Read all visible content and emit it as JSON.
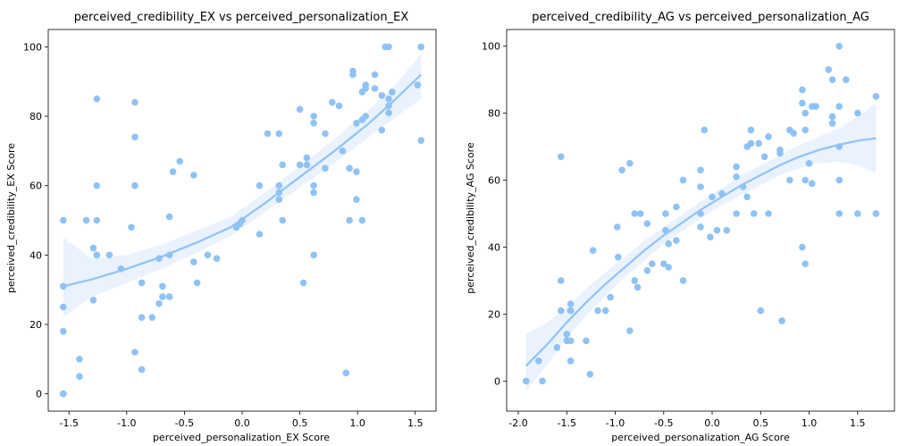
{
  "colors": {
    "points": "#8fc2f5",
    "line": "#8fc2f5",
    "band": "#dbeafc"
  },
  "chart_data": [
    {
      "type": "scatter",
      "title": "perceived_credibility_EX vs perceived_personalization_EX",
      "xlabel": "perceived_personalization_EX Score",
      "ylabel": "perceived_credibility_EX Score",
      "xlim": [
        -1.68,
        1.68
      ],
      "ylim": [
        -5,
        105
      ],
      "xticks": [
        "-1.5",
        "-1.0",
        "-0.5",
        "0.0",
        "0.5",
        "1.0",
        "1.5"
      ],
      "yticks": [
        "0",
        "20",
        "40",
        "60",
        "80",
        "100"
      ],
      "xtick_values": [
        -1.5,
        -1.0,
        -0.5,
        0.0,
        0.5,
        1.0,
        1.5
      ],
      "ytick_values": [
        0,
        20,
        40,
        60,
        80,
        100
      ],
      "points": [
        [
          -1.55,
          50
        ],
        [
          -1.55,
          31
        ],
        [
          -1.55,
          25
        ],
        [
          -1.55,
          18
        ],
        [
          -1.55,
          0
        ],
        [
          -1.55,
          0
        ],
        [
          -1.41,
          10
        ],
        [
          -1.41,
          5
        ],
        [
          -1.35,
          50
        ],
        [
          -1.29,
          42
        ],
        [
          -1.29,
          27
        ],
        [
          -1.26,
          85
        ],
        [
          -1.26,
          60
        ],
        [
          -1.26,
          50
        ],
        [
          -1.26,
          40
        ],
        [
          -1.26,
          40
        ],
        [
          -1.15,
          40
        ],
        [
          -1.05,
          36
        ],
        [
          -0.96,
          48
        ],
        [
          -0.93,
          84
        ],
        [
          -0.93,
          74
        ],
        [
          -0.93,
          60
        ],
        [
          -0.93,
          12
        ],
        [
          -0.87,
          32
        ],
        [
          -0.87,
          22
        ],
        [
          -0.87,
          7
        ],
        [
          -0.78,
          22
        ],
        [
          -0.72,
          26
        ],
        [
          -0.72,
          39
        ],
        [
          -0.69,
          31
        ],
        [
          -0.69,
          28
        ],
        [
          -0.63,
          51
        ],
        [
          -0.63,
          40
        ],
        [
          -0.63,
          28
        ],
        [
          -0.6,
          64
        ],
        [
          -0.54,
          67
        ],
        [
          -0.42,
          63
        ],
        [
          -0.42,
          38
        ],
        [
          -0.39,
          32
        ],
        [
          -0.3,
          40
        ],
        [
          -0.22,
          39
        ],
        [
          -0.05,
          48
        ],
        [
          -0.02,
          49
        ],
        [
          0.0,
          50
        ],
        [
          0.15,
          60
        ],
        [
          0.15,
          46
        ],
        [
          0.22,
          75
        ],
        [
          0.32,
          75
        ],
        [
          0.32,
          60
        ],
        [
          0.32,
          58
        ],
        [
          0.32,
          56
        ],
        [
          0.35,
          66
        ],
        [
          0.35,
          50
        ],
        [
          0.5,
          82
        ],
        [
          0.5,
          66
        ],
        [
          0.53,
          32
        ],
        [
          0.56,
          68
        ],
        [
          0.56,
          66
        ],
        [
          0.62,
          80
        ],
        [
          0.62,
          78
        ],
        [
          0.62,
          60
        ],
        [
          0.62,
          58
        ],
        [
          0.62,
          40
        ],
        [
          0.72,
          65
        ],
        [
          0.72,
          75
        ],
        [
          0.78,
          84
        ],
        [
          0.84,
          83
        ],
        [
          0.87,
          70
        ],
        [
          0.9,
          6
        ],
        [
          0.93,
          65
        ],
        [
          0.93,
          50
        ],
        [
          0.96,
          93
        ],
        [
          0.96,
          92
        ],
        [
          0.99,
          78
        ],
        [
          0.99,
          64
        ],
        [
          0.99,
          56
        ],
        [
          1.04,
          87
        ],
        [
          1.04,
          79
        ],
        [
          1.04,
          50
        ],
        [
          1.07,
          89
        ],
        [
          1.07,
          88
        ],
        [
          1.07,
          80
        ],
        [
          1.15,
          92
        ],
        [
          1.15,
          88
        ],
        [
          1.21,
          86
        ],
        [
          1.21,
          76
        ],
        [
          1.24,
          100
        ],
        [
          1.27,
          100
        ],
        [
          1.27,
          85
        ],
        [
          1.27,
          83
        ],
        [
          1.27,
          81
        ],
        [
          1.3,
          87
        ],
        [
          1.52,
          89
        ],
        [
          1.55,
          100
        ],
        [
          1.55,
          100
        ],
        [
          1.55,
          73
        ]
      ],
      "trend": {
        "x": [
          -1.55,
          -1.3,
          -1.0,
          -0.7,
          -0.4,
          -0.1,
          0.2,
          0.5,
          0.8,
          1.1,
          1.3,
          1.55
        ],
        "y": [
          31,
          33,
          36,
          39.5,
          43.5,
          48,
          55,
          62.5,
          70,
          78,
          84,
          92
        ]
      },
      "band": {
        "x": [
          -1.55,
          -1.3,
          -1.0,
          -0.7,
          -0.4,
          -0.1,
          0.2,
          0.5,
          0.8,
          1.1,
          1.3,
          1.55
        ],
        "lower": [
          22,
          28,
          32,
          36,
          40.5,
          45.5,
          52.5,
          59.5,
          66.5,
          74,
          79,
          85
        ],
        "upper": [
          45,
          39,
          40,
          43,
          47,
          51,
          58,
          65.5,
          73.5,
          82,
          88,
          98
        ]
      }
    },
    {
      "type": "scatter",
      "title": "perceived_credibility_AG vs perceived_personalization_AG",
      "xlabel": "perceived_personalization_AG Score",
      "ylabel": "perceived_credibility_AG Score",
      "xlim": [
        -2.12,
        1.88
      ],
      "ylim": [
        -9,
        105
      ],
      "xticks": [
        "-2.0",
        "-1.5",
        "-1.0",
        "-0.5",
        "0.0",
        "0.5",
        "1.0",
        "1.5"
      ],
      "yticks": [
        "0",
        "20",
        "40",
        "60",
        "80",
        "100"
      ],
      "xtick_values": [
        -2.0,
        -1.5,
        -1.0,
        -0.5,
        0.0,
        0.5,
        1.0,
        1.5
      ],
      "ytick_values": [
        0,
        20,
        40,
        60,
        80,
        100
      ],
      "points": [
        [
          -1.92,
          0
        ],
        [
          -1.79,
          6
        ],
        [
          -1.75,
          0
        ],
        [
          -1.6,
          10
        ],
        [
          -1.56,
          67
        ],
        [
          -1.56,
          30
        ],
        [
          -1.56,
          21
        ],
        [
          -1.5,
          14
        ],
        [
          -1.5,
          12
        ],
        [
          -1.46,
          23
        ],
        [
          -1.46,
          21
        ],
        [
          -1.46,
          12
        ],
        [
          -1.46,
          6
        ],
        [
          -1.3,
          12
        ],
        [
          -1.26,
          2
        ],
        [
          -1.23,
          39
        ],
        [
          -1.18,
          21
        ],
        [
          -1.1,
          21
        ],
        [
          -1.05,
          25
        ],
        [
          -0.98,
          46
        ],
        [
          -0.97,
          37
        ],
        [
          -0.93,
          63
        ],
        [
          -0.85,
          65
        ],
        [
          -0.85,
          15
        ],
        [
          -0.8,
          30
        ],
        [
          -0.8,
          50
        ],
        [
          -0.77,
          28
        ],
        [
          -0.74,
          50
        ],
        [
          -0.67,
          47
        ],
        [
          -0.67,
          33
        ],
        [
          -0.62,
          35
        ],
        [
          -0.5,
          35
        ],
        [
          -0.48,
          45
        ],
        [
          -0.48,
          50
        ],
        [
          -0.45,
          41
        ],
        [
          -0.45,
          34
        ],
        [
          -0.37,
          42
        ],
        [
          -0.37,
          52
        ],
        [
          -0.3,
          30
        ],
        [
          -0.3,
          60
        ],
        [
          -0.12,
          63
        ],
        [
          -0.12,
          58
        ],
        [
          -0.12,
          50
        ],
        [
          -0.12,
          46
        ],
        [
          -0.08,
          75
        ],
        [
          -0.02,
          43
        ],
        [
          0.0,
          55
        ],
        [
          0.05,
          45
        ],
        [
          0.1,
          56
        ],
        [
          0.15,
          45
        ],
        [
          0.25,
          64
        ],
        [
          0.25,
          61
        ],
        [
          0.25,
          50
        ],
        [
          0.32,
          58
        ],
        [
          0.36,
          70
        ],
        [
          0.36,
          55
        ],
        [
          0.4,
          75
        ],
        [
          0.4,
          71
        ],
        [
          0.43,
          50
        ],
        [
          0.48,
          71
        ],
        [
          0.5,
          21
        ],
        [
          0.54,
          67
        ],
        [
          0.58,
          73
        ],
        [
          0.58,
          50
        ],
        [
          0.7,
          69
        ],
        [
          0.7,
          68
        ],
        [
          0.72,
          18
        ],
        [
          0.8,
          75
        ],
        [
          0.8,
          60
        ],
        [
          0.84,
          74
        ],
        [
          0.93,
          87
        ],
        [
          0.93,
          83
        ],
        [
          0.93,
          40
        ],
        [
          0.96,
          80
        ],
        [
          0.96,
          75
        ],
        [
          0.96,
          60
        ],
        [
          0.96,
          35
        ],
        [
          1.0,
          65
        ],
        [
          1.03,
          82
        ],
        [
          1.03,
          59
        ],
        [
          1.07,
          82
        ],
        [
          1.2,
          93
        ],
        [
          1.24,
          90
        ],
        [
          1.24,
          79
        ],
        [
          1.24,
          77
        ],
        [
          1.31,
          100
        ],
        [
          1.31,
          82
        ],
        [
          1.31,
          70
        ],
        [
          1.31,
          60
        ],
        [
          1.31,
          50
        ],
        [
          1.38,
          90
        ],
        [
          1.5,
          80
        ],
        [
          1.5,
          50
        ],
        [
          1.69,
          85
        ],
        [
          1.69,
          50
        ],
        [
          1.69,
          50
        ]
      ],
      "trend": {
        "x": [
          -1.92,
          -1.7,
          -1.5,
          -1.3,
          -1.1,
          -0.9,
          -0.7,
          -0.5,
          -0.3,
          -0.1,
          0.1,
          0.3,
          0.5,
          0.7,
          0.9,
          1.1,
          1.3,
          1.5,
          1.69
        ],
        "y": [
          4.5,
          11,
          17.5,
          23.5,
          29,
          34,
          39,
          43.5,
          47.5,
          51.5,
          55,
          58.5,
          61.5,
          64.5,
          67,
          69,
          70.5,
          71.8,
          72.5
        ]
      },
      "band": {
        "x": [
          -1.92,
          -1.7,
          -1.5,
          -1.3,
          -1.1,
          -0.9,
          -0.7,
          -0.5,
          -0.3,
          -0.1,
          0.1,
          0.3,
          0.5,
          0.7,
          0.9,
          1.1,
          1.3,
          1.5,
          1.69
        ],
        "lower": [
          -3,
          5,
          13,
          19.5,
          25.5,
          31,
          36,
          41,
          45,
          49,
          52.5,
          55.5,
          58.5,
          61.5,
          63.5,
          65,
          65.5,
          64.5,
          62
        ],
        "upper": [
          14,
          17.5,
          22,
          27.5,
          32.5,
          37,
          42,
          46,
          50,
          54,
          57.5,
          61.5,
          64.5,
          67.5,
          70.5,
          73,
          75.5,
          79,
          83
        ]
      }
    }
  ]
}
